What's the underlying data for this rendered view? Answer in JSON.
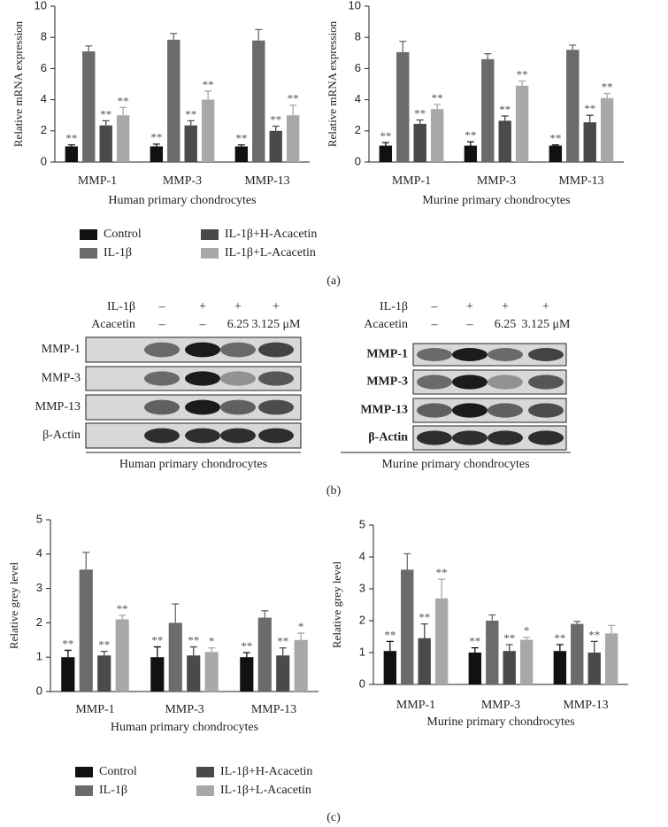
{
  "chart_data": [
    {
      "type": "bar",
      "ylabel": "Relative mRNA expression",
      "xlabel": "Human primary chondrocytes",
      "categories": [
        "MMP-1",
        "MMP-3",
        "MMP-13"
      ],
      "ylim": [
        0,
        10
      ],
      "yticks": [
        0,
        2,
        4,
        6,
        8,
        10
      ],
      "series": [
        {
          "name": "Control",
          "color": "#111111",
          "values": [
            1.0,
            1.0,
            1.0
          ],
          "errors": [
            0.1,
            0.15,
            0.1
          ],
          "annotations": [
            "**",
            "**",
            "**"
          ]
        },
        {
          "name": "IL-1β",
          "color": "#6b6b6b",
          "values": [
            7.1,
            7.85,
            7.8
          ],
          "errors": [
            0.35,
            0.4,
            0.7
          ]
        },
        {
          "name": "IL-1β+H-Acacetin",
          "color": "#4a4a4a",
          "values": [
            2.35,
            2.35,
            2.0
          ],
          "errors": [
            0.3,
            0.3,
            0.3
          ],
          "annotations": [
            "**",
            "**",
            "**"
          ]
        },
        {
          "name": "IL-1β+L-Acacetin",
          "color": "#a8a8a8",
          "values": [
            3.0,
            4.0,
            3.0
          ],
          "errors": [
            0.5,
            0.55,
            0.65
          ],
          "annotations": [
            "**",
            "**",
            "**"
          ]
        }
      ]
    },
    {
      "type": "bar",
      "ylabel": "Relative mRNA expression",
      "xlabel": "Murine primary chondrocytes",
      "categories": [
        "MMP-1",
        "MMP-3",
        "MMP-13"
      ],
      "ylim": [
        0,
        10
      ],
      "yticks": [
        0,
        2,
        4,
        6,
        8,
        10
      ],
      "series": [
        {
          "color": "#111111",
          "values": [
            1.05,
            1.05,
            1.05
          ],
          "errors": [
            0.2,
            0.25,
            0.05
          ],
          "annotations": [
            "**",
            "**",
            "**"
          ]
        },
        {
          "color": "#6b6b6b",
          "values": [
            7.05,
            6.6,
            7.2
          ],
          "errors": [
            0.7,
            0.35,
            0.3
          ]
        },
        {
          "color": "#4a4a4a",
          "values": [
            2.45,
            2.65,
            2.55
          ],
          "errors": [
            0.25,
            0.3,
            0.45
          ],
          "annotations": [
            "**",
            "**",
            "**"
          ]
        },
        {
          "color": "#a8a8a8",
          "values": [
            3.4,
            4.9,
            4.1
          ],
          "errors": [
            0.3,
            0.3,
            0.3
          ],
          "annotations": [
            "**",
            "**",
            "**"
          ]
        }
      ]
    },
    {
      "type": "bar",
      "ylabel": "Relative grey level",
      "xlabel": "Human primary chondrocytes",
      "categories": [
        "MMP-1",
        "MMP-3",
        "MMP-13"
      ],
      "ylim": [
        0,
        5
      ],
      "yticks": [
        0,
        1,
        2,
        3,
        4,
        5
      ],
      "series": [
        {
          "name": "Control",
          "color": "#111111",
          "values": [
            1.0,
            1.0,
            1.0
          ],
          "errors": [
            0.2,
            0.3,
            0.13
          ],
          "annotations": [
            "**",
            "**",
            "**"
          ]
        },
        {
          "name": "IL-1β",
          "color": "#6b6b6b",
          "values": [
            3.55,
            2.0,
            2.15
          ],
          "errors": [
            0.5,
            0.55,
            0.2
          ]
        },
        {
          "name": "IL-1β+H-Acacetin",
          "color": "#4a4a4a",
          "values": [
            1.05,
            1.05,
            1.05
          ],
          "errors": [
            0.12,
            0.25,
            0.22
          ],
          "annotations": [
            "**",
            "**",
            "**"
          ]
        },
        {
          "name": "IL-1β+L-Acacetin",
          "color": "#a8a8a8",
          "values": [
            2.1,
            1.15,
            1.5
          ],
          "errors": [
            0.12,
            0.12,
            0.2
          ],
          "annotations": [
            "**",
            "*",
            "*"
          ]
        }
      ]
    },
    {
      "type": "bar",
      "ylabel": "Relative grey level",
      "xlabel": "Murine primary chondrocytes",
      "categories": [
        "MMP-1",
        "MMP-3",
        "MMP-13"
      ],
      "ylim": [
        0,
        5
      ],
      "yticks": [
        0,
        1,
        2,
        3,
        4,
        5
      ],
      "series": [
        {
          "color": "#111111",
          "values": [
            1.05,
            1.0,
            1.05
          ],
          "errors": [
            0.3,
            0.15,
            0.2
          ],
          "annotations": [
            "**",
            "**",
            "**"
          ]
        },
        {
          "color": "#6b6b6b",
          "values": [
            3.6,
            2.0,
            1.9
          ],
          "errors": [
            0.5,
            0.18,
            0.08
          ]
        },
        {
          "color": "#4a4a4a",
          "values": [
            1.45,
            1.05,
            1.0
          ],
          "errors": [
            0.45,
            0.2,
            0.35
          ],
          "annotations": [
            "**",
            "**",
            "**"
          ]
        },
        {
          "color": "#a8a8a8",
          "values": [
            2.7,
            1.4,
            1.6
          ],
          "errors": [
            0.6,
            0.08,
            0.25
          ],
          "annotations": [
            "**",
            "*",
            null
          ]
        }
      ]
    }
  ],
  "blots": [
    {
      "treatments": [
        {
          "label": "IL-1β",
          "values": [
            "–",
            "+",
            "+",
            "+"
          ]
        },
        {
          "label": "Acacetin",
          "values": [
            "–",
            "–",
            "6.25",
            "3.125 μM"
          ]
        }
      ],
      "bands": [
        "MMP-1",
        "MMP-3",
        "MMP-13",
        "β-Actin"
      ],
      "caption": "Human primary chondrocytes"
    },
    {
      "treatments": [
        {
          "label": "IL-1β",
          "values": [
            "–",
            "+",
            "+",
            "+"
          ]
        },
        {
          "label": "Acacetin",
          "values": [
            "–",
            "–",
            "6.25",
            "3.125 μM"
          ]
        }
      ],
      "bands": [
        "MMP-1",
        "MMP-3",
        "MMP-13",
        "β-Actin"
      ],
      "caption": "Murine primary chondrocytes"
    }
  ],
  "panel_labels": [
    "(a)",
    "(b)",
    "(c)"
  ]
}
